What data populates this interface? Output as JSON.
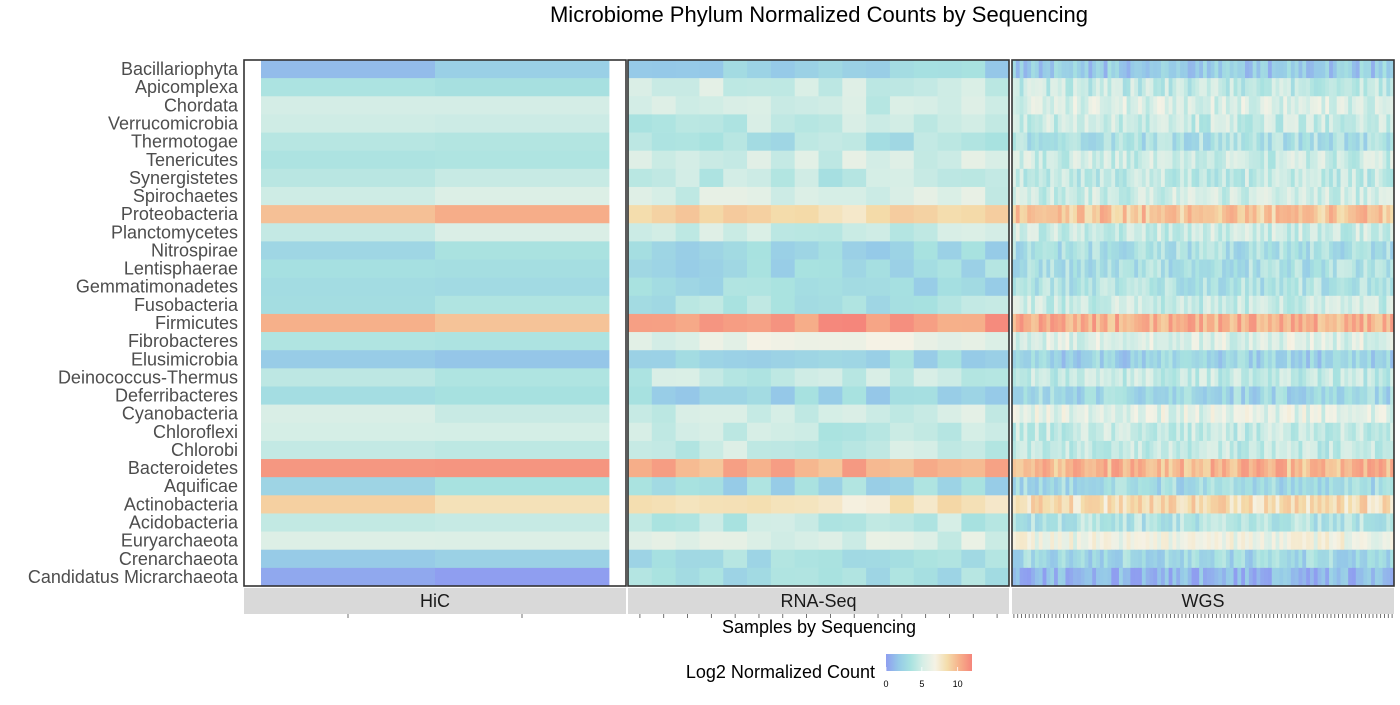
{
  "chart_data": {
    "type": "heatmap",
    "title": "Microbiome Phylum Normalized Counts by Sequencing",
    "xlabel": "Samples by Sequencing",
    "ylabel": "",
    "legend": {
      "title": "Log2 Normalized Count",
      "ticks": [
        0,
        5,
        10
      ],
      "range": [
        0,
        12
      ],
      "position": "bottom"
    },
    "color_scale": [
      "#8f9ef0",
      "#95c9e8",
      "#a8e2e0",
      "#d6eee6",
      "#f5f2e5",
      "#f4dcaa",
      "#f6b08a",
      "#f5857b"
    ],
    "rows": [
      "Bacillariophyta",
      "Apicomplexa",
      "Chordata",
      "Verrucomicrobia",
      "Thermotogae",
      "Tenericutes",
      "Synergistetes",
      "Spirochaetes",
      "Proteobacteria",
      "Planctomycetes",
      "Nitrospirae",
      "Lentisphaerae",
      "Gemmatimonadetes",
      "Fusobacteria",
      "Firmicutes",
      "Fibrobacteres",
      "Elusimicrobia",
      "Deinococcus-Thermus",
      "Deferribacteres",
      "Cyanobacteria",
      "Chloroflexi",
      "Chlorobi",
      "Bacteroidetes",
      "Aquificae",
      "Actinobacteria",
      "Acidobacteria",
      "Euryarchaeota",
      "Crenarchaeota",
      "Candidatus Micrarchaeota"
    ],
    "panels": [
      {
        "name": "HiC",
        "n_samples": 2
      },
      {
        "name": "RNA-Seq",
        "n_samples": 16
      },
      {
        "name": "WGS",
        "n_samples": 100
      }
    ],
    "base_values": {
      "HiC": [
        1.8,
        3.8,
        4.7,
        4.6,
        3.5,
        3.6,
        4.0,
        5.0,
        10.0,
        4.8,
        3.2,
        3.0,
        3.2,
        3.2,
        10.0,
        3.2,
        2.0,
        4.2,
        2.8,
        5.0,
        4.8,
        4.7,
        11.5,
        3.0,
        8.5,
        4.5,
        5.4,
        2.3,
        0.5
      ],
      "RNA-Seq": [
        2.6,
        5.0,
        4.8,
        4.4,
        3.5,
        5.1,
        4.2,
        5.2,
        8.5,
        4.7,
        2.6,
        3.0,
        2.8,
        3.6,
        11.0,
        6.0,
        2.6,
        4.4,
        2.6,
        5.0,
        4.4,
        4.6,
        10.3,
        2.8,
        7.8,
        4.2,
        5.4,
        3.0,
        3.1
      ],
      "WGS": [
        2.0,
        4.4,
        5.4,
        4.7,
        3.4,
        4.8,
        4.4,
        4.9,
        9.4,
        4.8,
        3.3,
        3.4,
        3.6,
        4.7,
        10.2,
        5.6,
        2.4,
        4.5,
        2.8,
        5.8,
        4.6,
        4.5,
        9.9,
        3.0,
        8.3,
        3.8,
        6.3,
        2.8,
        1.0
      ]
    }
  }
}
